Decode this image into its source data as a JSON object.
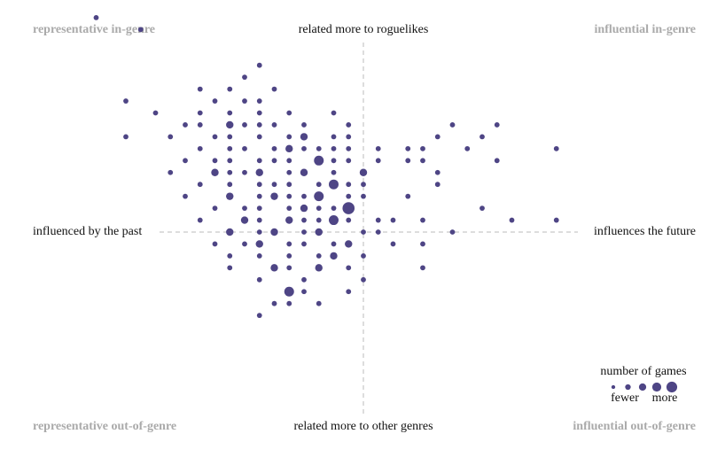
{
  "chart_data": {
    "type": "scatter",
    "color": "#4e4585",
    "labels": {
      "top_left": "representative in-genre",
      "top": "related more to roguelikes",
      "top_right": "influential in-genre",
      "left": "influenced by the past",
      "right": "influences the future",
      "bottom_left": "representative out-of-genre",
      "bottom": "related more to other genres",
      "bottom_right": "influential out-of-genre"
    },
    "xlim": [
      -20,
      20
    ],
    "ylim": [
      -14,
      19
    ],
    "x": [
      -18,
      -15,
      -7,
      -8,
      -11,
      -9,
      -6,
      -16,
      -10,
      -8,
      -7,
      -14,
      -11,
      -9,
      -7,
      -5,
      -2,
      -12,
      -11,
      -9,
      -8,
      -7,
      -6,
      -4,
      -1,
      6,
      9,
      -16,
      -13,
      -10,
      -9,
      -7,
      -5,
      -4,
      -2,
      -1,
      5,
      8,
      -11,
      -9,
      -8,
      -6,
      -5,
      -4,
      -3,
      -2,
      -1,
      1,
      3,
      4,
      7,
      13,
      -12,
      -10,
      -9,
      -7,
      -6,
      -5,
      -3,
      -2,
      -1,
      1,
      3,
      4,
      9,
      -13,
      -10,
      -9,
      -8,
      -7,
      -5,
      -4,
      -2,
      0,
      5,
      -11,
      -9,
      -7,
      -6,
      -5,
      -3,
      -2,
      -1,
      0,
      5,
      -12,
      -9,
      -7,
      -6,
      -5,
      -4,
      -3,
      -1,
      0,
      3,
      -10,
      -8,
      -7,
      -5,
      -4,
      -3,
      -2,
      -1,
      8,
      -11,
      -8,
      -7,
      -5,
      -4,
      -3,
      -2,
      -1,
      1,
      2,
      4,
      10,
      13,
      -9,
      -7,
      -6,
      -4,
      -3,
      0,
      1,
      6,
      -10,
      -8,
      -7,
      -5,
      -4,
      -2,
      -1,
      2,
      4,
      -9,
      -7,
      -5,
      -3,
      -2,
      0,
      -9,
      -6,
      -5,
      -3,
      -1,
      4,
      -7,
      -4,
      0,
      -5,
      -4,
      -1,
      -6,
      -5,
      -3,
      -7
    ],
    "values": [
      18,
      17,
      14,
      13,
      12,
      12,
      12,
      11,
      11,
      11,
      11,
      10,
      10,
      10,
      10,
      10,
      10,
      9,
      9,
      9,
      9,
      9,
      9,
      9,
      9,
      9,
      9,
      8,
      8,
      8,
      8,
      8,
      8,
      8,
      8,
      8,
      8,
      8,
      7,
      7,
      7,
      7,
      7,
      7,
      7,
      7,
      7,
      7,
      7,
      7,
      7,
      7,
      6,
      6,
      6,
      6,
      6,
      6,
      6,
      6,
      6,
      6,
      6,
      6,
      6,
      5,
      5,
      5,
      5,
      5,
      5,
      5,
      5,
      5,
      5,
      4,
      4,
      4,
      4,
      4,
      4,
      4,
      4,
      4,
      4,
      3,
      3,
      3,
      3,
      3,
      3,
      3,
      3,
      3,
      3,
      2,
      2,
      2,
      2,
      2,
      2,
      2,
      2,
      2,
      1,
      1,
      1,
      1,
      1,
      1,
      1,
      1,
      1,
      1,
      1,
      1,
      1,
      0,
      0,
      0,
      0,
      0,
      0,
      0,
      0,
      -1,
      -1,
      -1,
      -1,
      -1,
      -1,
      -1,
      -1,
      -1,
      -2,
      -2,
      -2,
      -2,
      -2,
      -2,
      -3,
      -3,
      -3,
      -3,
      -3,
      -3,
      -4,
      -4,
      -4,
      -5,
      -5,
      -5,
      -6,
      -6,
      -6,
      -7
    ],
    "sizes": [
      1,
      1,
      1,
      1,
      1,
      1,
      1,
      1,
      1,
      1,
      1,
      1,
      1,
      1,
      1,
      1,
      1,
      1,
      1,
      2,
      1,
      1,
      1,
      1,
      1,
      1,
      1,
      1,
      1,
      1,
      1,
      1,
      1,
      2,
      1,
      1,
      1,
      1,
      1,
      1,
      1,
      1,
      2,
      1,
      1,
      1,
      1,
      1,
      1,
      1,
      1,
      1,
      1,
      1,
      1,
      1,
      1,
      1,
      3,
      1,
      1,
      1,
      1,
      1,
      1,
      1,
      2,
      1,
      1,
      2,
      1,
      2,
      1,
      2,
      1,
      1,
      1,
      1,
      1,
      1,
      1,
      3,
      1,
      1,
      1,
      1,
      2,
      1,
      2,
      1,
      1,
      3,
      1,
      1,
      1,
      1,
      1,
      1,
      1,
      2,
      1,
      1,
      4,
      1,
      1,
      2,
      1,
      2,
      1,
      1,
      3,
      1,
      1,
      1,
      1,
      1,
      1,
      2,
      1,
      2,
      1,
      2,
      1,
      1,
      1,
      1,
      1,
      2,
      1,
      1,
      1,
      2,
      1,
      1,
      1,
      1,
      1,
      1,
      2,
      1,
      1,
      2,
      1,
      2,
      1,
      1,
      1,
      1,
      1,
      3,
      1,
      1,
      1,
      1,
      1,
      1
    ],
    "legend": {
      "title": "number of games",
      "sizes": [
        1,
        2,
        3,
        4,
        5
      ],
      "low": "fewer",
      "high": "more"
    }
  }
}
